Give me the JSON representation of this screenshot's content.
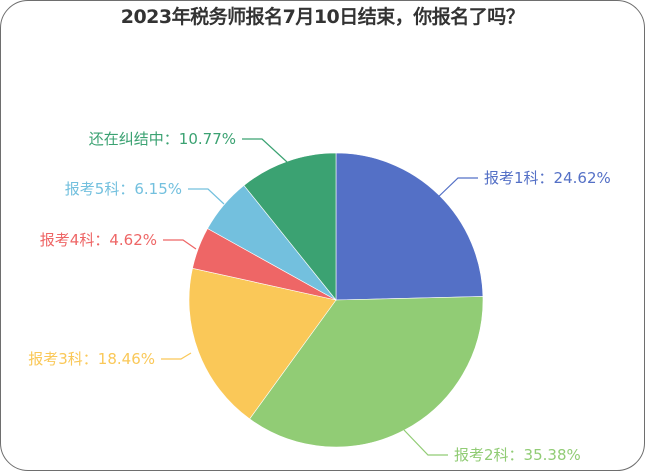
{
  "title": "2023年税务师报名7月10日结束，你报名了吗？",
  "chart_data": {
    "type": "pie",
    "title": "2023年税务师报名7月10日结束，你报名了吗？",
    "categories": [
      "报考1科",
      "报考2科",
      "报考3科",
      "报考4科",
      "报考5科",
      "还在纠结中"
    ],
    "values": [
      24.62,
      35.38,
      18.46,
      4.62,
      6.15,
      10.77
    ],
    "unit": "%",
    "colors": [
      "#5470c6",
      "#91cc75",
      "#fac858",
      "#ee6666",
      "#73c0de",
      "#3ba272"
    ],
    "start_angle": 90,
    "direction": "clockwise",
    "legend": "none (outside labels with leader lines)"
  },
  "labels": [
    {
      "text": "报考1科：24.62%"
    },
    {
      "text": "报考2科：35.38%"
    },
    {
      "text": "报考3科：18.46%"
    },
    {
      "text": "报考4科：4.62%"
    },
    {
      "text": "报考5科：6.15%"
    },
    {
      "text": "还在纠结中：10.77%"
    }
  ]
}
